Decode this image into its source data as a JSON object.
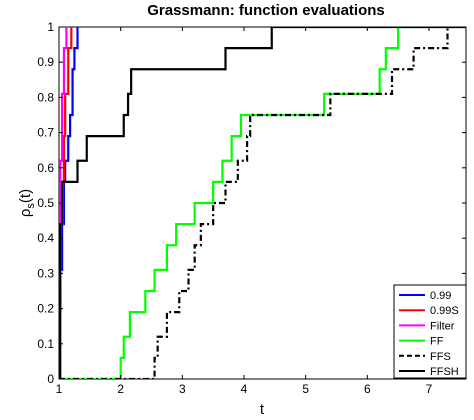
{
  "chart_data": {
    "type": "line",
    "step": true,
    "title": "Grassmann: function evaluations",
    "xlabel": "t",
    "ylabel": "ρs(t)",
    "ylabel_main": "ρ",
    "ylabel_sub": "s",
    "ylabel_tail": "(t)",
    "xlim": [
      1,
      7.6
    ],
    "ylim": [
      0,
      1
    ],
    "xticks": [
      1,
      2,
      3,
      4,
      5,
      6,
      7
    ],
    "xtick_labels": [
      "1",
      "2",
      "3",
      "4",
      "5",
      "6",
      "7"
    ],
    "yticks": [
      0,
      0.1,
      0.2,
      0.3,
      0.4,
      0.5,
      0.6,
      0.7,
      0.8,
      0.9,
      1
    ],
    "ytick_labels": [
      "0",
      "0.1",
      "0.2",
      "0.3",
      "0.4",
      "0.5",
      "0.6",
      "0.7",
      "0.8",
      "0.9",
      "1"
    ],
    "grid": false,
    "legend_position": "bottom-right",
    "series": [
      {
        "name": "0.99",
        "color": "#0000ff",
        "dash": "solid",
        "x": [
          1,
          1.02,
          1.05,
          1.08,
          1.1,
          1.15,
          1.18,
          1.22,
          1.25,
          1.3
        ],
        "y": [
          0.19,
          0.31,
          0.44,
          0.56,
          0.62,
          0.69,
          0.75,
          0.88,
          0.94,
          1.0
        ]
      },
      {
        "name": "0.99S",
        "color": "#ff0000",
        "dash": "solid",
        "x": [
          1,
          1.01,
          1.03,
          1.06,
          1.08,
          1.1,
          1.15,
          1.2
        ],
        "y": [
          0.25,
          0.31,
          0.44,
          0.56,
          0.69,
          0.81,
          0.94,
          1.0
        ]
      },
      {
        "name": "Filter",
        "color": "#ff00ff",
        "dash": "solid",
        "x": [
          1,
          1.02,
          1.05,
          1.08,
          1.12
        ],
        "y": [
          0.44,
          0.62,
          0.81,
          0.94,
          1.0
        ]
      },
      {
        "name": "FF",
        "color": "#00ff00",
        "dash": "solid",
        "x": [
          1,
          2.0,
          2.05,
          2.15,
          2.4,
          2.55,
          2.75,
          2.9,
          3.2,
          3.5,
          3.65,
          3.8,
          3.95,
          4.1,
          4.3,
          5.3,
          6.2,
          6.3,
          6.5,
          6.85
        ],
        "y": [
          0.0,
          0.06,
          0.12,
          0.19,
          0.25,
          0.31,
          0.38,
          0.44,
          0.5,
          0.56,
          0.62,
          0.69,
          0.75,
          0.75,
          0.75,
          0.81,
          0.88,
          0.94,
          1.0,
          1.0
        ]
      },
      {
        "name": "FFS",
        "color": "#000000",
        "dash": "dashed",
        "x": [
          1,
          2.55,
          2.6,
          2.75,
          2.95,
          3.1,
          3.2,
          3.3,
          3.5,
          3.7,
          3.9,
          4.05,
          4.1,
          5.4,
          6.4,
          6.75,
          7.0,
          7.3,
          7.45
        ],
        "y": [
          0.0,
          0.06,
          0.12,
          0.19,
          0.25,
          0.31,
          0.38,
          0.44,
          0.5,
          0.56,
          0.62,
          0.69,
          0.75,
          0.81,
          0.88,
          0.94,
          0.94,
          1.0,
          1.0
        ]
      },
      {
        "name": "FFSH",
        "color": "#000000",
        "dash": "solid",
        "x": [
          1,
          1.02,
          1.05,
          1.3,
          1.45,
          1.95,
          2.05,
          2.12,
          2.17,
          3.7,
          4.45,
          7.6
        ],
        "y": [
          0.0,
          0.44,
          0.56,
          0.62,
          0.69,
          0.69,
          0.75,
          0.81,
          0.88,
          0.94,
          1.0,
          1.0
        ]
      }
    ]
  }
}
